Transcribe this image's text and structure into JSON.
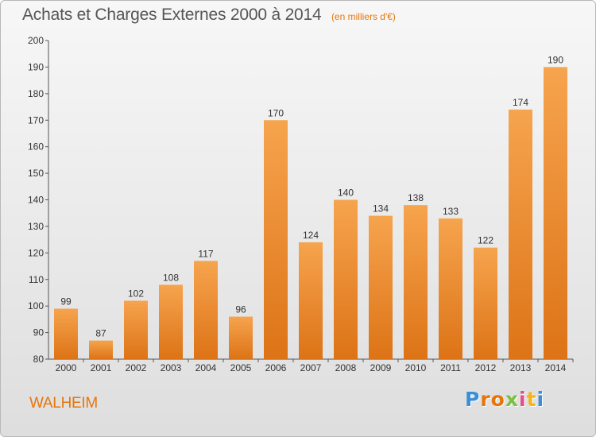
{
  "header": {
    "title": "Achats et Charges Externes 2000 à 2014",
    "subtitle": "(en milliers d'€)"
  },
  "footer": {
    "commune": "WALHEIM",
    "brand": "Proxiti"
  },
  "colors": {
    "bar_light": "#f6a44e",
    "bar_dark": "#dd7316",
    "accent": "#e8750a"
  },
  "chart_data": {
    "type": "bar",
    "title": "Achats et Charges Externes 2000 à 2014",
    "subtitle": "(en milliers d'€)",
    "xlabel": "",
    "ylabel": "",
    "categories": [
      "2000",
      "2001",
      "2002",
      "2003",
      "2004",
      "2005",
      "2006",
      "2007",
      "2008",
      "2009",
      "2010",
      "2011",
      "2012",
      "2013",
      "2014"
    ],
    "values": [
      99,
      87,
      102,
      108,
      117,
      96,
      170,
      124,
      140,
      134,
      138,
      133,
      122,
      174,
      190
    ],
    "ylim": [
      80,
      200
    ],
    "yticks": [
      80,
      90,
      100,
      110,
      120,
      130,
      140,
      150,
      160,
      170,
      180,
      190,
      200
    ],
    "grid": false,
    "data_labels": true
  }
}
